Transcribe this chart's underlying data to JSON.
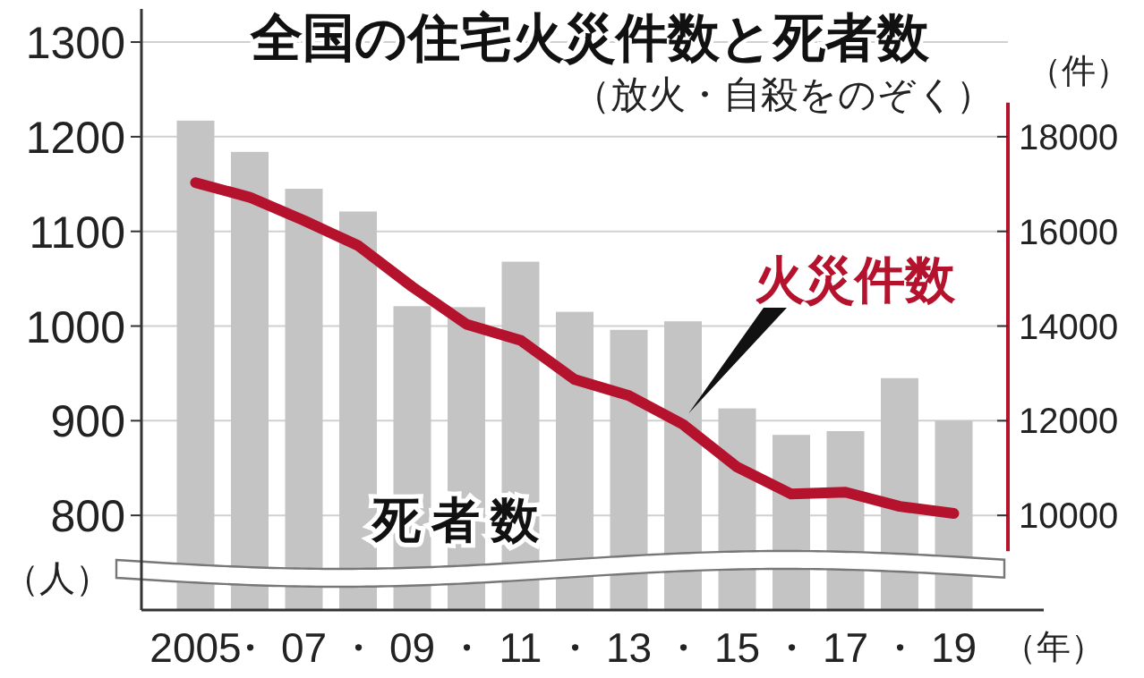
{
  "chart_data": {
    "type": "bar",
    "title": "全国の住宅火災件数と死者数",
    "subtitle": "（放火・自殺をのぞく）",
    "xlabel": "（年）",
    "ylabel": "（人）",
    "y2label": "（件）",
    "categories": [
      "2005",
      "・",
      "07",
      "・",
      "09",
      "・",
      "11",
      "・",
      "13",
      "・",
      "15",
      "・",
      "17",
      "・",
      "19"
    ],
    "series": [
      {
        "name": "死者数",
        "color": "#c4c4c4",
        "values": [
          1217,
          1184,
          1145,
          1121,
          1021,
          1020,
          1068,
          1015,
          996,
          1005,
          913,
          885,
          889,
          945,
          900
        ]
      },
      {
        "name": "火災件数",
        "type": "line",
        "axis": "y2",
        "color": "#b5122d",
        "values": [
          17030,
          16720,
          16230,
          15700,
          14830,
          14040,
          13700,
          12870,
          12530,
          11920,
          11020,
          10450,
          10490,
          10190,
          10040
        ]
      }
    ],
    "ylim": [
      700,
      1335
    ],
    "yticks": [
      800,
      900,
      1000,
      1100,
      1200,
      1300
    ],
    "y2lim": [
      8000,
      20700
    ],
    "y2ticks": [
      10000,
      12000,
      14000,
      16000,
      18000
    ],
    "grid": "y"
  }
}
